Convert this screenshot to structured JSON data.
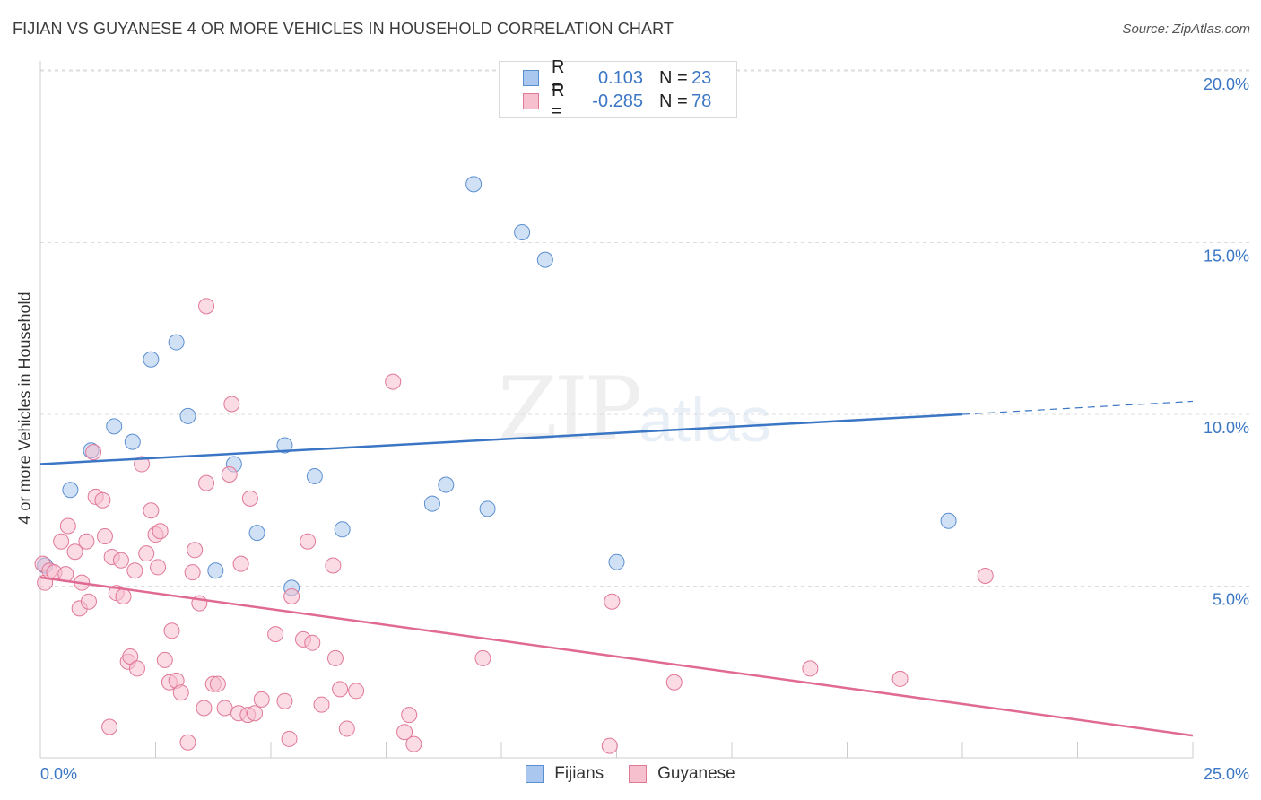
{
  "title": "FIJIAN VS GUYANESE 4 OR MORE VEHICLES IN HOUSEHOLD CORRELATION CHART",
  "source": "Source: ZipAtlas.com",
  "watermark": {
    "zip": "ZIP",
    "atlas": "atlas"
  },
  "legend": {
    "rows": [
      {
        "r_label": "R =",
        "r_value": "0.103",
        "n_label": "N =",
        "n_value": "23",
        "color": "#aac8ef",
        "border": "#5b8fd0"
      },
      {
        "r_label": "R =",
        "r_value": "-0.285",
        "n_label": "N =",
        "n_value": "78",
        "color": "#f7c0cf",
        "border": "#e07897"
      }
    ]
  },
  "bottom_legend": [
    {
      "label": "Fijians",
      "color": "#aac8ef",
      "border": "#5b8fd0"
    },
    {
      "label": "Guyanese",
      "color": "#f7c0cf",
      "border": "#e07897"
    }
  ],
  "chart_data": {
    "type": "scatter",
    "title": "FIJIAN VS GUYANESE 4 OR MORE VEHICLES IN HOUSEHOLD CORRELATION CHART",
    "xlabel": "",
    "ylabel": "4 or more Vehicles in Household",
    "xlim": [
      0,
      25
    ],
    "ylim": [
      0,
      20
    ],
    "x_tick_labels": [
      "0.0%",
      "25.0%"
    ],
    "y_ticks": [
      5,
      10,
      15,
      20
    ],
    "y_tick_labels": [
      "5.0%",
      "10.0%",
      "15.0%",
      "20.0%"
    ],
    "grid": true,
    "series": [
      {
        "name": "Fijians",
        "color": "#aac8ef",
        "edge": "#5b8fd0",
        "line_color": "#3a76c4",
        "trend": {
          "x0": 0,
          "y0": 8.55,
          "x1": 20,
          "y1": 10.0,
          "dash_to_x": 25,
          "dash_to_y": 10.38
        },
        "points": [
          [
            0.1,
            5.6
          ],
          [
            0.65,
            7.8
          ],
          [
            1.1,
            8.95
          ],
          [
            1.6,
            9.65
          ],
          [
            2.0,
            9.2
          ],
          [
            2.4,
            11.6
          ],
          [
            2.95,
            12.1
          ],
          [
            3.2,
            9.95
          ],
          [
            3.8,
            5.45
          ],
          [
            4.2,
            8.55
          ],
          [
            4.7,
            6.55
          ],
          [
            5.3,
            9.1
          ],
          [
            5.45,
            4.95
          ],
          [
            5.95,
            8.2
          ],
          [
            6.55,
            6.65
          ],
          [
            8.5,
            7.4
          ],
          [
            8.8,
            7.95
          ],
          [
            9.4,
            16.7
          ],
          [
            9.7,
            7.25
          ],
          [
            10.45,
            15.3
          ],
          [
            10.95,
            14.5
          ],
          [
            12.5,
            5.7
          ],
          [
            19.7,
            6.9
          ]
        ]
      },
      {
        "name": "Guyanese",
        "color": "#f7c0cf",
        "edge": "#e07897",
        "line_color": "#e06a94",
        "trend": {
          "x0": 0,
          "y0": 5.25,
          "x1": 25,
          "y1": 0.65
        },
        "points": [
          [
            0.05,
            5.65
          ],
          [
            0.1,
            5.1
          ],
          [
            0.2,
            5.45
          ],
          [
            0.3,
            5.4
          ],
          [
            0.45,
            6.3
          ],
          [
            0.55,
            5.35
          ],
          [
            0.6,
            6.75
          ],
          [
            0.75,
            6.0
          ],
          [
            0.85,
            4.35
          ],
          [
            0.9,
            5.1
          ],
          [
            1.0,
            6.3
          ],
          [
            1.05,
            4.55
          ],
          [
            1.15,
            8.9
          ],
          [
            1.2,
            7.6
          ],
          [
            1.35,
            7.5
          ],
          [
            1.4,
            6.45
          ],
          [
            1.55,
            5.85
          ],
          [
            1.65,
            4.8
          ],
          [
            1.75,
            5.75
          ],
          [
            1.8,
            4.7
          ],
          [
            1.9,
            2.8
          ],
          [
            1.95,
            2.95
          ],
          [
            2.05,
            5.45
          ],
          [
            2.1,
            2.6
          ],
          [
            2.3,
            5.95
          ],
          [
            2.4,
            7.2
          ],
          [
            2.5,
            6.5
          ],
          [
            2.55,
            5.55
          ],
          [
            2.6,
            6.6
          ],
          [
            2.7,
            2.85
          ],
          [
            2.8,
            2.2
          ],
          [
            2.85,
            3.7
          ],
          [
            2.95,
            2.25
          ],
          [
            3.05,
            1.9
          ],
          [
            3.2,
            0.45
          ],
          [
            3.3,
            5.4
          ],
          [
            3.35,
            6.05
          ],
          [
            3.45,
            4.5
          ],
          [
            3.55,
            1.45
          ],
          [
            3.6,
            8.0
          ],
          [
            3.6,
            13.15
          ],
          [
            3.75,
            2.15
          ],
          [
            3.85,
            2.15
          ],
          [
            4.0,
            1.45
          ],
          [
            4.1,
            8.25
          ],
          [
            4.15,
            10.3
          ],
          [
            4.3,
            1.3
          ],
          [
            4.35,
            5.65
          ],
          [
            4.5,
            1.25
          ],
          [
            4.55,
            7.55
          ],
          [
            4.65,
            1.3
          ],
          [
            4.8,
            1.7
          ],
          [
            5.1,
            3.6
          ],
          [
            5.3,
            1.65
          ],
          [
            5.4,
            0.55
          ],
          [
            5.45,
            4.7
          ],
          [
            5.7,
            3.45
          ],
          [
            5.8,
            6.3
          ],
          [
            5.9,
            3.35
          ],
          [
            6.1,
            1.55
          ],
          [
            6.35,
            5.6
          ],
          [
            6.4,
            2.9
          ],
          [
            6.5,
            2.0
          ],
          [
            6.65,
            0.85
          ],
          [
            6.85,
            1.95
          ],
          [
            7.65,
            10.95
          ],
          [
            7.9,
            0.75
          ],
          [
            8.0,
            1.25
          ],
          [
            9.6,
            2.9
          ],
          [
            8.1,
            0.4
          ],
          [
            1.5,
            0.9
          ],
          [
            12.35,
            0.35
          ],
          [
            12.4,
            4.55
          ],
          [
            13.75,
            2.2
          ],
          [
            16.7,
            2.6
          ],
          [
            18.65,
            2.3
          ],
          [
            20.5,
            5.3
          ],
          [
            2.2,
            8.55
          ]
        ]
      }
    ]
  }
}
